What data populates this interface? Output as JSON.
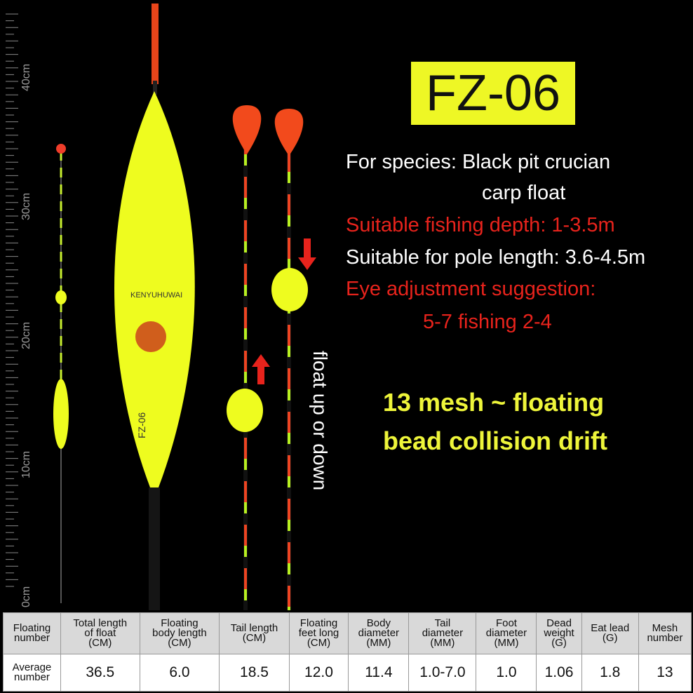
{
  "ruler": {
    "labels": [
      "40cm",
      "30cm",
      "20cm",
      "10cm",
      "0cm"
    ]
  },
  "float": {
    "brand": "KENYUHUWAI",
    "model": "FZ-06"
  },
  "title": "FZ-06",
  "specs": {
    "species": "For species: Black pit crucian",
    "species_cont": "carp float",
    "depth": "Suitable fishing depth: 1-3.5m",
    "pole": "Suitable for pole length: 3.6-4.5m",
    "eye": "Eye adjustment suggestion:",
    "eye_cont": "5-7 fishing 2-4"
  },
  "float_note": "float up or down",
  "mesh": [
    "13 mesh ~ floating",
    "bead collision drift"
  ],
  "table": {
    "header": [
      [
        "Floating",
        "number"
      ],
      [
        "Total length",
        "of float",
        "(CM)"
      ],
      [
        "Floating",
        "body length",
        "(CM)"
      ],
      [
        "Tail length",
        "(CM)"
      ],
      [
        "Floating",
        "feet long",
        "(CM)"
      ],
      [
        "Body",
        "diameter",
        "(MM)"
      ],
      [
        "Tail",
        "diameter",
        "(MM)"
      ],
      [
        "Foot",
        "diameter",
        "(MM)"
      ],
      [
        "Dead",
        "weight",
        "(G)"
      ],
      [
        "Eat lead",
        "(G)"
      ],
      [
        "Mesh",
        "number"
      ]
    ],
    "row": [
      [
        "Average",
        "number"
      ],
      "36.5",
      "6.0",
      "18.5",
      "12.0",
      "11.4",
      "1.0-7.0",
      "1.0",
      "1.06",
      "1.8",
      "13"
    ]
  }
}
